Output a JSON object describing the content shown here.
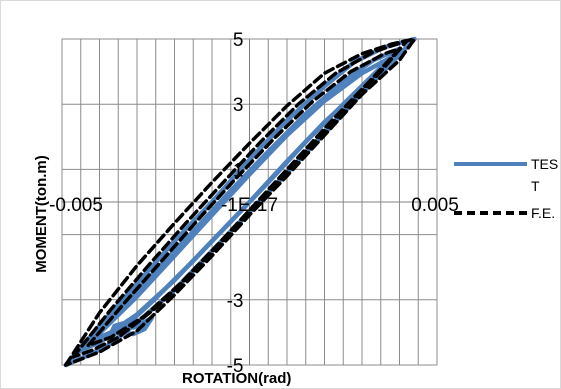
{
  "chart_data": {
    "type": "line",
    "xlabel": "ROTATION(rad)",
    "ylabel": "MOMENT(ton.m)",
    "xlim": [
      -0.005,
      0.005
    ],
    "ylim": [
      -5,
      5
    ],
    "grid": true,
    "x_gridlines": [
      -0.0045,
      -0.004,
      -0.0035,
      -0.003,
      -0.0025,
      -0.002,
      -0.0015,
      -0.001,
      -0.0005,
      0,
      0.0005,
      0.001,
      0.0015,
      0.002,
      0.0025,
      0.003,
      0.0035,
      0.004,
      0.0045
    ],
    "y_gridlines": [
      -5,
      -3,
      -1,
      1,
      3,
      5
    ],
    "x_tick_labels": [
      {
        "value": -0.005,
        "label": "-0.005"
      },
      {
        "value": 0,
        "label": "-1E-17"
      },
      {
        "value": 0.005,
        "label": "0.005"
      }
    ],
    "y_tick_labels": [
      {
        "value": 5,
        "label": "5"
      },
      {
        "value": 3,
        "label": "3"
      },
      {
        "value": 1,
        "label": "1"
      },
      {
        "value": -3,
        "label": "-3"
      },
      {
        "value": -5,
        "label": "-5"
      }
    ],
    "legend_position": "right",
    "series": [
      {
        "name": "TEST",
        "legend_lines": [
          "TES",
          "T"
        ],
        "style": "solid",
        "color": "#4f81bd",
        "loops": [
          {
            "upper": [
              [
                -0.0049,
                -5.0
              ],
              [
                -0.004,
                -3.8
              ],
              [
                -0.003,
                -2.5
              ],
              [
                -0.002,
                -1.2
              ],
              [
                -0.001,
                0.0
              ],
              [
                0.0,
                1.3
              ],
              [
                0.001,
                2.5
              ],
              [
                0.002,
                3.55
              ],
              [
                0.0028,
                4.3
              ],
              [
                0.0036,
                4.75
              ],
              [
                0.0044,
                5.0
              ]
            ],
            "lower": [
              [
                0.0044,
                5.0
              ],
              [
                0.0036,
                4.05
              ],
              [
                0.0028,
                3.1
              ],
              [
                0.002,
                2.1
              ],
              [
                0.001,
                0.9
              ],
              [
                0.0,
                -0.3
              ],
              [
                -0.001,
                -1.5
              ],
              [
                -0.002,
                -2.7
              ],
              [
                -0.003,
                -3.7
              ],
              [
                -0.0037,
                -4.35
              ],
              [
                -0.0042,
                -4.65
              ],
              [
                -0.0049,
                -5.0
              ]
            ]
          },
          {
            "upper": [
              [
                -0.0046,
                -4.6
              ],
              [
                -0.0035,
                -3.3
              ],
              [
                -0.0025,
                -2.1
              ],
              [
                -0.0015,
                -0.9
              ],
              [
                -0.0005,
                0.35
              ],
              [
                0.0005,
                1.55
              ],
              [
                0.0015,
                2.7
              ],
              [
                0.0025,
                3.7
              ],
              [
                0.0033,
                4.35
              ],
              [
                0.004,
                4.7
              ]
            ],
            "lower": [
              [
                0.004,
                4.7
              ],
              [
                0.0033,
                3.9
              ],
              [
                0.0025,
                3.0
              ],
              [
                0.0015,
                1.85
              ],
              [
                0.0005,
                0.6
              ],
              [
                -0.0005,
                -0.6
              ],
              [
                -0.0015,
                -1.8
              ],
              [
                -0.0025,
                -2.95
              ],
              [
                -0.0033,
                -3.8
              ],
              [
                -0.004,
                -4.3
              ],
              [
                -0.0046,
                -4.6
              ]
            ]
          },
          {
            "upper": [
              [
                -0.0042,
                -4.25
              ],
              [
                -0.003,
                -2.9
              ],
              [
                -0.002,
                -1.65
              ],
              [
                -0.001,
                -0.4
              ],
              [
                0.0,
                0.85
              ],
              [
                0.001,
                2.05
              ],
              [
                0.002,
                3.1
              ],
              [
                0.003,
                3.95
              ],
              [
                0.0038,
                4.45
              ]
            ],
            "lower": [
              [
                0.0038,
                4.45
              ],
              [
                0.003,
                3.5
              ],
              [
                0.002,
                2.45
              ],
              [
                0.001,
                1.25
              ],
              [
                0.0,
                0.0
              ],
              [
                -0.001,
                -1.2
              ],
              [
                -0.002,
                -2.4
              ],
              [
                -0.003,
                -3.45
              ],
              [
                -0.0037,
                -4.0
              ],
              [
                -0.0042,
                -4.25
              ]
            ]
          },
          {
            "upper": [
              [
                -0.0037,
                -4.05
              ],
              [
                -0.0036,
                -3.8
              ],
              [
                -0.0033,
                -3.7
              ],
              [
                -0.0031,
                -3.85
              ],
              [
                -0.0029,
                -3.75
              ],
              [
                -0.0026,
                -3.55
              ]
            ],
            "lower": [
              [
                -0.0026,
                -3.55
              ],
              [
                -0.0028,
                -3.9
              ],
              [
                -0.0031,
                -4.05
              ],
              [
                -0.0034,
                -4.0
              ],
              [
                -0.0037,
                -4.05
              ]
            ]
          }
        ]
      },
      {
        "name": "F.E.",
        "legend_lines": [
          "F.E."
        ],
        "style": "dashed",
        "color": "#000000",
        "loops": [
          {
            "upper": [
              [
                -0.0049,
                -5.0
              ],
              [
                -0.004,
                -3.4
              ],
              [
                -0.003,
                -1.95
              ],
              [
                -0.002,
                -0.65
              ],
              [
                -0.001,
                0.6
              ],
              [
                0.0,
                1.8
              ],
              [
                0.001,
                2.95
              ],
              [
                0.002,
                3.95
              ],
              [
                0.003,
                4.55
              ],
              [
                0.0038,
                4.85
              ],
              [
                0.0044,
                5.0
              ]
            ],
            "lower": [
              [
                0.0044,
                5.0
              ],
              [
                0.004,
                4.35
              ],
              [
                0.003,
                3.3
              ],
              [
                0.002,
                2.05
              ],
              [
                0.001,
                0.8
              ],
              [
                0.0,
                -0.4
              ],
              [
                -0.001,
                -1.65
              ],
              [
                -0.002,
                -2.85
              ],
              [
                -0.003,
                -3.95
              ],
              [
                -0.004,
                -4.6
              ],
              [
                -0.0049,
                -5.0
              ]
            ]
          },
          {
            "upper": [
              [
                -0.0047,
                -4.75
              ],
              [
                -0.0037,
                -3.3
              ],
              [
                -0.0027,
                -1.95
              ],
              [
                -0.0017,
                -0.65
              ],
              [
                -0.0007,
                0.6
              ],
              [
                0.0003,
                1.85
              ],
              [
                0.0013,
                3.0
              ],
              [
                0.0023,
                3.95
              ],
              [
                0.0033,
                4.6
              ],
              [
                0.0042,
                4.95
              ]
            ],
            "lower": [
              [
                0.0042,
                4.95
              ],
              [
                0.0035,
                4.0
              ],
              [
                0.0025,
                2.8
              ],
              [
                0.0015,
                1.55
              ],
              [
                0.0005,
                0.3
              ],
              [
                -0.0005,
                -0.95
              ],
              [
                -0.0015,
                -2.15
              ],
              [
                -0.0025,
                -3.25
              ],
              [
                -0.0035,
                -4.15
              ],
              [
                -0.0042,
                -4.55
              ],
              [
                -0.0047,
                -4.75
              ]
            ]
          },
          {
            "upper": [
              [
                -0.0043,
                -4.4
              ],
              [
                -0.0033,
                -3.05
              ],
              [
                -0.0023,
                -1.75
              ],
              [
                -0.0013,
                -0.45
              ],
              [
                -0.0003,
                0.8
              ],
              [
                0.0007,
                2.0
              ],
              [
                0.0017,
                3.1
              ],
              [
                0.0027,
                4.0
              ],
              [
                0.0036,
                4.55
              ],
              [
                0.004,
                4.7
              ]
            ],
            "lower": [
              [
                0.004,
                4.7
              ],
              [
                0.0032,
                3.7
              ],
              [
                0.0022,
                2.5
              ],
              [
                0.0012,
                1.25
              ],
              [
                0.0002,
                0.0
              ],
              [
                -0.0008,
                -1.25
              ],
              [
                -0.0018,
                -2.45
              ],
              [
                -0.0028,
                -3.5
              ],
              [
                -0.0037,
                -4.15
              ],
              [
                -0.0043,
                -4.4
              ]
            ]
          }
        ]
      }
    ]
  }
}
